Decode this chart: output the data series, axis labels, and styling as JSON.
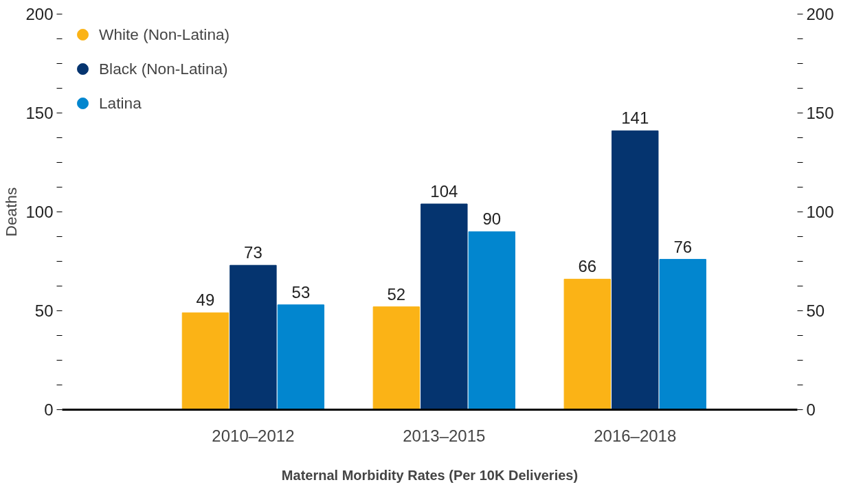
{
  "chart_data": {
    "type": "bar",
    "xlabel": "Maternal Morbidity Rates (Per 10K Deliveries)",
    "ylabel": "Deaths",
    "categories": [
      "2010–2012",
      "2013–2015",
      "2016–2018"
    ],
    "series": [
      {
        "name": "White (Non-Latina)",
        "color": "#fbb316",
        "values": [
          49,
          52,
          66
        ]
      },
      {
        "name": "Black (Non-Latina)",
        "color": "#05346f",
        "values": [
          73,
          104,
          141
        ]
      },
      {
        "name": "Latina",
        "color": "#0286cf",
        "values": [
          53,
          90,
          76
        ]
      }
    ],
    "ylim": [
      0,
      200
    ],
    "yticks": [
      0,
      {
        "value": 12.5,
        "label": null
      },
      {
        "value": 25,
        "label": null
      },
      {
        "value": 37.5,
        "label": null
      },
      50,
      {
        "value": 62.5,
        "label": null
      },
      {
        "value": 75,
        "label": null
      },
      {
        "value": 87.5,
        "label": null
      },
      100,
      {
        "value": 112.5,
        "label": null
      },
      {
        "value": 125,
        "label": null
      },
      {
        "value": 137.5,
        "label": null
      },
      150,
      {
        "value": 162.5,
        "label": null
      },
      {
        "value": 175,
        "label": null
      },
      {
        "value": 187.5,
        "label": null
      },
      200
    ],
    "y2lim": [
      0,
      200
    ],
    "y2ticks": [
      0,
      {
        "value": 12.5,
        "label": null
      },
      {
        "value": 25,
        "label": null
      },
      {
        "value": 37.5,
        "label": null
      },
      50,
      {
        "value": 62.5,
        "label": null
      },
      {
        "value": 75,
        "label": null
      },
      {
        "value": 87.5,
        "label": null
      },
      100,
      {
        "value": 112.5,
        "label": null
      },
      {
        "value": 125,
        "label": null
      },
      {
        "value": 137.5,
        "label": null
      },
      150,
      {
        "value": 162.5,
        "label": null
      },
      {
        "value": 175,
        "label": null
      },
      {
        "value": 187.5,
        "label": null
      },
      200
    ],
    "data_labels": true,
    "legend": "top left",
    "grid": false
  }
}
